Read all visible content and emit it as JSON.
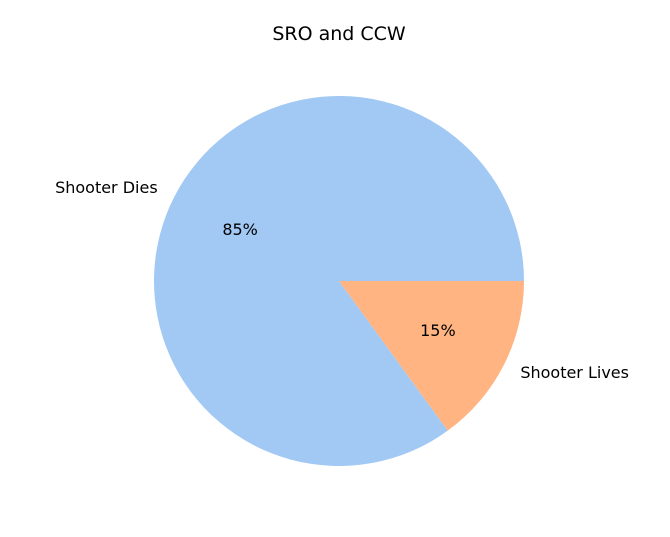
{
  "chart_data": {
    "type": "pie",
    "title": "SRO and CCW",
    "labels": [
      "Shooter Dies",
      "Shooter Lives"
    ],
    "values": [
      85,
      15
    ],
    "percent_labels": [
      "85%",
      "15%"
    ],
    "colors": [
      "#a1c9f4",
      "#ffb482"
    ],
    "start_angle_degrees": 0,
    "direction": "counterclockwise",
    "legend": "none"
  }
}
